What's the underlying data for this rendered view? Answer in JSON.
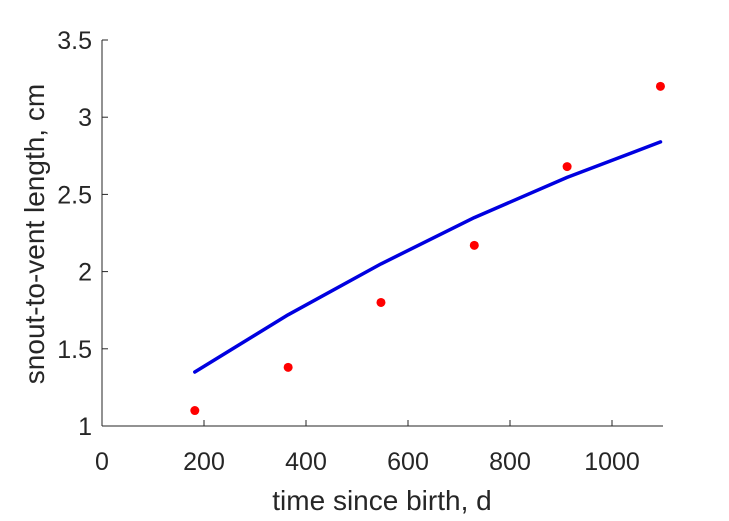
{
  "chart_data": {
    "type": "scatter",
    "xlabel": "time since birth, d",
    "ylabel": "snout-to-vent length, cm",
    "xlim": [
      0,
      1100
    ],
    "ylim": [
      1,
      3.5
    ],
    "xticks": [
      0,
      200,
      400,
      600,
      800,
      1000
    ],
    "yticks": [
      1,
      1.5,
      2,
      2.5,
      3,
      3.5
    ],
    "xtick_labels": [
      "0",
      "200",
      "400",
      "600",
      "800",
      "1000"
    ],
    "ytick_labels": [
      "1",
      "1.5",
      "2",
      "2.5",
      "3",
      "3.5"
    ],
    "grid": false,
    "series": [
      {
        "kind": "points",
        "color": "#ff0000",
        "x": [
          182,
          365,
          547,
          730,
          912,
          1095
        ],
        "y": [
          1.1,
          1.38,
          1.8,
          2.17,
          2.68,
          3.2
        ]
      },
      {
        "kind": "line",
        "color": "#0000e0",
        "x": [
          182,
          365,
          547,
          730,
          912,
          1095
        ],
        "y": [
          1.35,
          1.72,
          2.05,
          2.35,
          2.61,
          2.84
        ]
      }
    ]
  }
}
